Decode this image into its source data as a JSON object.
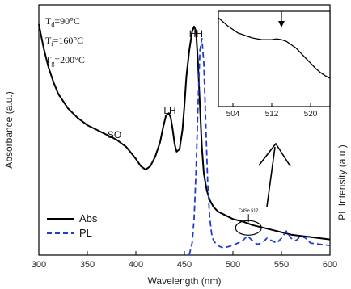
{
  "chart_data": {
    "type": "line",
    "xlabel": "Wavelength (nm)",
    "ylabel_left": "Absorbance (a.u.)",
    "ylabel_right": "PL Intensity (a.u.)",
    "xlim": [
      300,
      600
    ],
    "x_ticks": [
      300,
      350,
      400,
      450,
      500,
      550,
      600
    ],
    "ylim": [
      0,
      1
    ],
    "grid": false,
    "legend_position": "bottom-left",
    "conditions": [
      {
        "label": "T",
        "sub": "d",
        "value": "=90°C"
      },
      {
        "label": "T",
        "sub": "i",
        "value": "=160°C"
      },
      {
        "label": "T",
        "sub": "g",
        "value": "=200°C"
      }
    ],
    "peak_labels": [
      {
        "text": "SO",
        "x": 378,
        "y": 0.48
      },
      {
        "text": "LH",
        "x": 435,
        "y": 0.58
      },
      {
        "text": "HH",
        "x": 462,
        "y": 0.9
      }
    ],
    "annotation": {
      "text": "CdSe 512",
      "x": 516,
      "y": 0.14
    },
    "series": [
      {
        "name": "Abs",
        "color": "#000000",
        "dash": "solid",
        "x": [
          300,
          305,
          310,
          315,
          320,
          330,
          340,
          350,
          360,
          370,
          380,
          390,
          400,
          405,
          410,
          415,
          420,
          425,
          428,
          431,
          434,
          436,
          438,
          440,
          442,
          445,
          448,
          450,
          452,
          455,
          458,
          460,
          462,
          464,
          466,
          468,
          470,
          473,
          476,
          480,
          485,
          490,
          500,
          510,
          520,
          530,
          540,
          550,
          560,
          570,
          580,
          590,
          600
        ],
        "y": [
          0.96,
          0.86,
          0.78,
          0.72,
          0.67,
          0.61,
          0.57,
          0.54,
          0.52,
          0.5,
          0.48,
          0.45,
          0.4,
          0.37,
          0.355,
          0.37,
          0.41,
          0.47,
          0.53,
          0.58,
          0.59,
          0.57,
          0.52,
          0.46,
          0.43,
          0.44,
          0.52,
          0.62,
          0.74,
          0.85,
          0.93,
          0.95,
          0.93,
          0.8,
          0.62,
          0.45,
          0.34,
          0.27,
          0.23,
          0.2,
          0.18,
          0.17,
          0.15,
          0.14,
          0.125,
          0.115,
          0.105,
          0.095,
          0.085,
          0.08,
          0.075,
          0.07,
          0.065
        ]
      },
      {
        "name": "PL",
        "color": "#1f3bd6",
        "dash": "dashed",
        "x": [
          455,
          458,
          460,
          462,
          464,
          466,
          468,
          470,
          472,
          474,
          476,
          478,
          480,
          484,
          490,
          495,
          500,
          505,
          510,
          515,
          520,
          525,
          530,
          535,
          540,
          545,
          550,
          555,
          560,
          565,
          570,
          575,
          580,
          590,
          600
        ],
        "y": [
          0.0,
          0.05,
          0.15,
          0.35,
          0.62,
          0.85,
          0.9,
          0.8,
          0.55,
          0.3,
          0.16,
          0.09,
          0.06,
          0.04,
          0.03,
          0.035,
          0.04,
          0.05,
          0.06,
          0.08,
          0.06,
          0.045,
          0.05,
          0.07,
          0.06,
          0.05,
          0.07,
          0.1,
          0.07,
          0.06,
          0.08,
          0.07,
          0.05,
          0.045,
          0.04
        ]
      }
    ],
    "inset": {
      "xlim": [
        501,
        524
      ],
      "x_ticks": [
        504,
        512,
        520
      ],
      "arrow_x": 514,
      "series": [
        {
          "name": "Abs",
          "x": [
            501,
            502,
            503,
            504,
            505,
            506,
            507,
            508,
            509,
            510,
            511,
            512,
            513,
            514,
            515,
            516,
            517,
            518,
            519,
            520,
            521,
            522,
            523,
            524
          ],
          "y": [
            0.98,
            0.93,
            0.88,
            0.84,
            0.8,
            0.78,
            0.76,
            0.74,
            0.73,
            0.72,
            0.72,
            0.72,
            0.73,
            0.72,
            0.7,
            0.66,
            0.62,
            0.56,
            0.5,
            0.44,
            0.38,
            0.33,
            0.29,
            0.26
          ]
        }
      ]
    }
  }
}
